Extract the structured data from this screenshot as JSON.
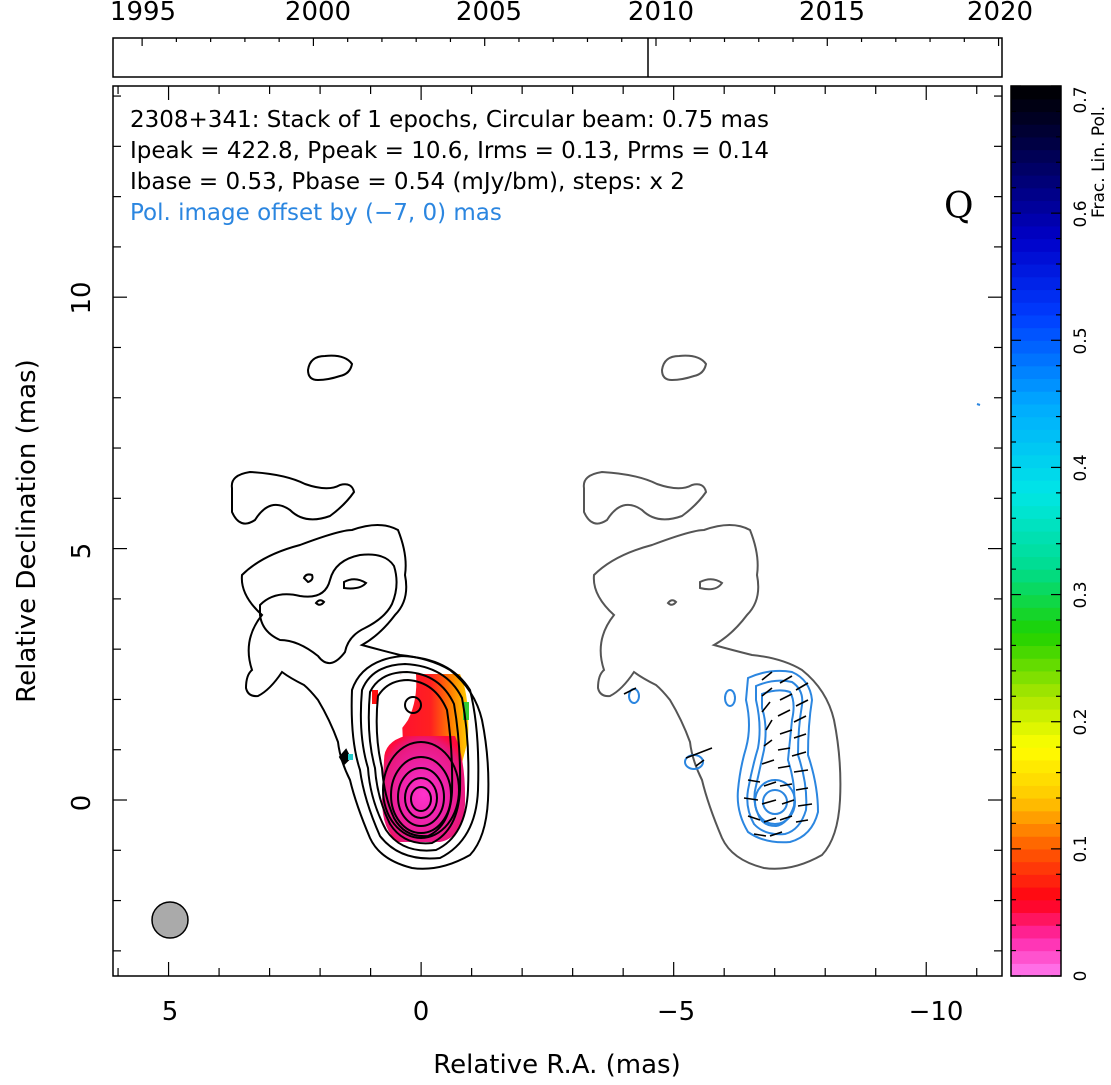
{
  "timeline": {
    "years": [
      "1995",
      "2000",
      "2005",
      "2010",
      "2015",
      "2020"
    ],
    "epoch_marker": "2009.7"
  },
  "annotations": {
    "line1": "2308+341: Stack of 1 epochs, Circular beam: 0.75 mas",
    "line2": "Ipeak = 422.8, Ppeak = 10.6, Irms = 0.13, Prms = 0.14",
    "line3": "Ibase = 0.53, Pbase = 0.54 (mJy/bm), steps: x 2",
    "line4": "Pol. image offset by (−7, 0) mas",
    "line4_color": "#2b86e0",
    "band": "Q"
  },
  "axes": {
    "xlabel": "Relative R.A. (mas)",
    "ylabel": "Relative Declination (mas)",
    "xticks": [
      "5",
      "0",
      "−5",
      "−10"
    ],
    "yticks": [
      "0",
      "5",
      "10"
    ]
  },
  "colorbar": {
    "label": "Frac. Lin. Pol.",
    "ticks": [
      "0",
      "0.1",
      "0.2",
      "0.3",
      "0.4",
      "0.5",
      "0.6",
      "0.7"
    ]
  },
  "chart_data": {
    "type": "heatmap",
    "title": "2308+341: Stack of 1 epochs, Circular beam: 0.75 mas",
    "xlabel": "Relative R.A. (mas)",
    "ylabel": "Relative Declination (mas)",
    "xlim": [
      6.1,
      -11.5
    ],
    "ylim": [
      -3.5,
      14.2
    ],
    "x_inverted": true,
    "colorbar_range": [
      0,
      0.7
    ],
    "colorbar_label": "Frac. Lin. Pol.",
    "beam_mas": 0.75,
    "pol_offset_mas": [
      -7,
      0
    ],
    "stats": {
      "Ipeak": 422.8,
      "Ppeak": 10.6,
      "Irms": 0.13,
      "Prms": 0.14,
      "Ibase": 0.53,
      "Pbase": 0.54,
      "unit": "mJy/bm",
      "steps": "x 2"
    },
    "colors": {
      "total_contour": "#000000",
      "offset_contour": "#555555",
      "pol_contour": "#2b86e0",
      "beam_fill": "#aaaaaa"
    }
  }
}
